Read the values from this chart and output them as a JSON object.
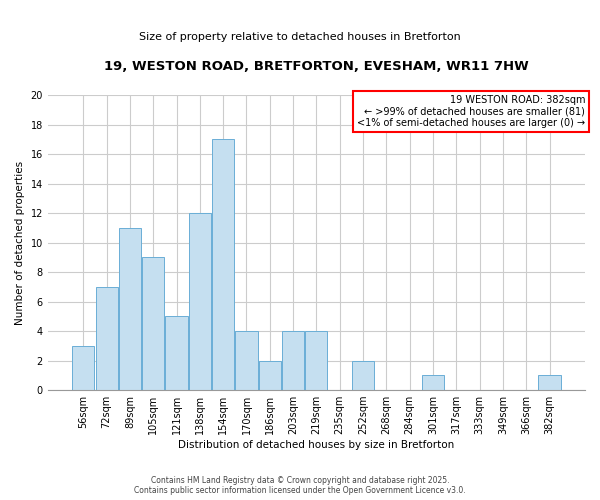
{
  "title": "19, WESTON ROAD, BRETFORTON, EVESHAM, WR11 7HW",
  "subtitle": "Size of property relative to detached houses in Bretforton",
  "xlabel": "Distribution of detached houses by size in Bretforton",
  "ylabel": "Number of detached properties",
  "bar_color": "#c5dff0",
  "bar_edge_color": "#6aaed6",
  "categories": [
    "56sqm",
    "72sqm",
    "89sqm",
    "105sqm",
    "121sqm",
    "138sqm",
    "154sqm",
    "170sqm",
    "186sqm",
    "203sqm",
    "219sqm",
    "235sqm",
    "252sqm",
    "268sqm",
    "284sqm",
    "301sqm",
    "317sqm",
    "333sqm",
    "349sqm",
    "366sqm",
    "382sqm"
  ],
  "values": [
    3,
    7,
    11,
    9,
    5,
    12,
    17,
    4,
    2,
    4,
    4,
    0,
    2,
    0,
    0,
    1,
    0,
    0,
    0,
    0,
    1
  ],
  "ylim": [
    0,
    20
  ],
  "yticks": [
    0,
    2,
    4,
    6,
    8,
    10,
    12,
    14,
    16,
    18,
    20
  ],
  "annotation_title": "19 WESTON ROAD: 382sqm",
  "annotation_line2": "← >99% of detached houses are smaller (81)",
  "annotation_line3": "<1% of semi-detached houses are larger (0) →",
  "annotation_box_color": "#ff0000",
  "grid_color": "#cccccc",
  "footer1": "Contains HM Land Registry data © Crown copyright and database right 2025.",
  "footer2": "Contains public sector information licensed under the Open Government Licence v3.0.",
  "background_color": "#ffffff"
}
